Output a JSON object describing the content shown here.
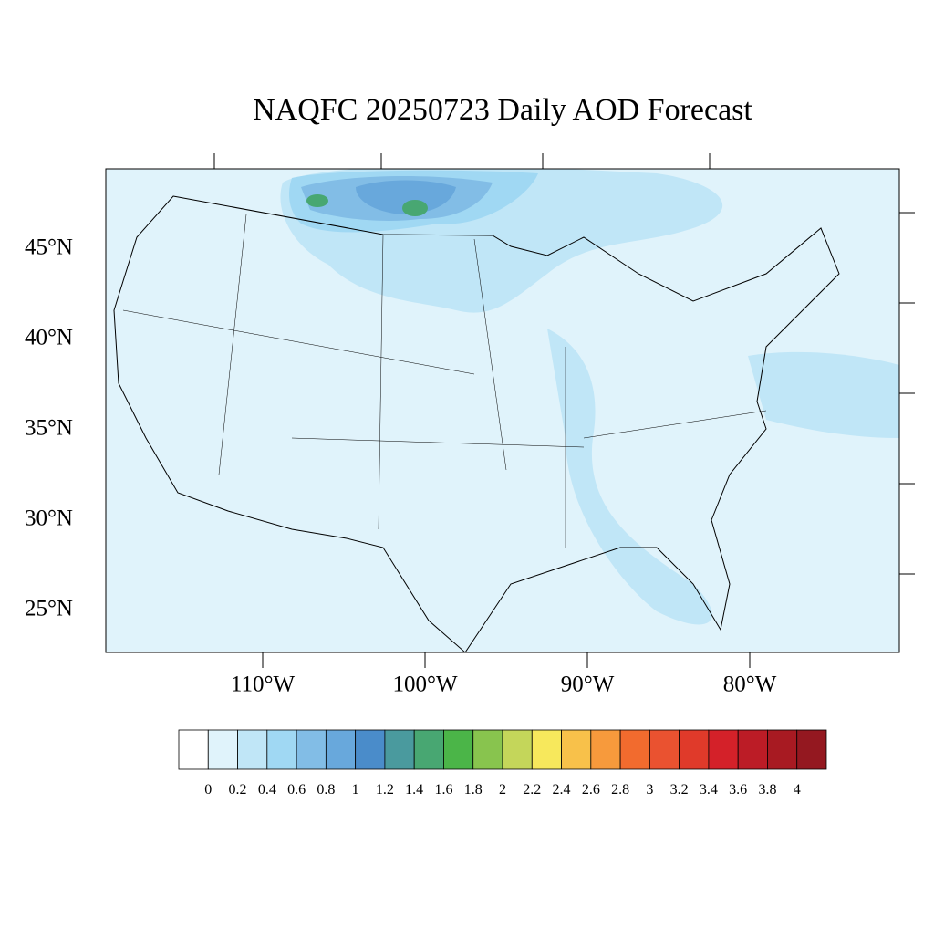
{
  "title": "NAQFC 20250723 Daily AOD Forecast",
  "lat_labels": [
    {
      "value": 45,
      "label": "45°N"
    },
    {
      "value": 40,
      "label": "40°N"
    },
    {
      "value": 35,
      "label": "35°N"
    },
    {
      "value": 30,
      "label": "30°N"
    },
    {
      "value": 25,
      "label": "25°N"
    }
  ],
  "lon_labels": [
    {
      "value": -110,
      "label": "110°W"
    },
    {
      "value": -100,
      "label": "100°W"
    },
    {
      "value": -90,
      "label": "90°W"
    },
    {
      "value": -80,
      "label": "80°W"
    }
  ],
  "colorbar": {
    "levels": [
      0,
      0.2,
      0.4,
      0.6,
      0.8,
      1,
      1.2,
      1.4,
      1.6,
      1.8,
      2,
      2.2,
      2.4,
      2.6,
      2.8,
      3,
      3.2,
      3.4,
      3.6,
      3.8,
      4
    ],
    "colors": [
      "#ffffff",
      "#e0f3fb",
      "#c0e6f7",
      "#a0d8f3",
      "#82bde6",
      "#68a8dc",
      "#4a8cca",
      "#4a9a9e",
      "#48a772",
      "#4bb548",
      "#88c44e",
      "#c4d65a",
      "#f7e85c",
      "#f8c14a",
      "#f79a3c",
      "#f26b2e",
      "#ea5230",
      "#e03a2a",
      "#d42129",
      "#bc1c26",
      "#a81a22",
      "#941820"
    ]
  }
}
